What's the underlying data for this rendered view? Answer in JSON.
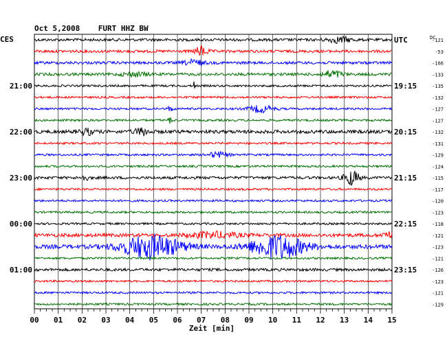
{
  "chart_data": {
    "type": "line",
    "title": "Oct 5,2008    FURT HHZ BW",
    "left_axis_label": "CES",
    "right_axis_label": "UTC",
    "dc_label": "DC",
    "xlabel": "Zeit [min]",
    "x_ticks": [
      "00",
      "01",
      "02",
      "03",
      "04",
      "05",
      "06",
      "07",
      "08",
      "09",
      "10",
      "11",
      "12",
      "13",
      "14",
      "15"
    ],
    "xlim": [
      0,
      15
    ],
    "grid": true,
    "trace_colors": [
      "#000000",
      "#ff0000",
      "#0000ff",
      "#007000"
    ],
    "left_time_labels": [
      {
        "trace": 4,
        "label": "21:00"
      },
      {
        "trace": 8,
        "label": "22:00"
      },
      {
        "trace": 12,
        "label": "23:00"
      },
      {
        "trace": 16,
        "label": "00:00"
      },
      {
        "trace": 20,
        "label": "01:00"
      }
    ],
    "right_time_labels": [
      {
        "trace": 0,
        "label": "UTC"
      },
      {
        "trace": 4,
        "label": "19:15"
      },
      {
        "trace": 8,
        "label": "20:15"
      },
      {
        "trace": 12,
        "label": "21:15"
      },
      {
        "trace": 16,
        "label": "22:15"
      },
      {
        "trace": 20,
        "label": "23:15"
      }
    ],
    "dc_offsets": [
      "-121",
      "-53",
      "-166",
      "-133",
      "-135",
      "-132",
      "-127",
      "-127",
      "-132",
      "-131",
      "-129",
      "-124",
      "-115",
      "-117",
      "-120",
      "-123",
      "-118",
      "-121",
      "-123",
      "-121",
      "-126",
      "-123",
      "-121",
      "-129"
    ],
    "traces": [
      {
        "amplitude": 2,
        "events": [
          {
            "t": 12.8,
            "w": 0.5,
            "a": 4
          }
        ]
      },
      {
        "amplitude": 2,
        "events": [
          {
            "t": 7.0,
            "w": 0.25,
            "a": 7
          }
        ]
      },
      {
        "amplitude": 2,
        "events": [
          {
            "t": 6.7,
            "w": 0.4,
            "a": 4
          }
        ]
      },
      {
        "amplitude": 2,
        "events": [
          {
            "t": 4.2,
            "w": 0.5,
            "a": 3
          },
          {
            "t": 12.5,
            "w": 0.4,
            "a": 5
          }
        ]
      },
      {
        "amplitude": 1.5,
        "events": [
          {
            "t": 6.7,
            "w": 0.05,
            "a": 6
          }
        ]
      },
      {
        "amplitude": 1.5,
        "events": []
      },
      {
        "amplitude": 1.5,
        "events": [
          {
            "t": 5.7,
            "w": 0.1,
            "a": 4
          },
          {
            "t": 9.5,
            "w": 0.5,
            "a": 5
          }
        ]
      },
      {
        "amplitude": 1.5,
        "events": [
          {
            "t": 5.7,
            "w": 0.1,
            "a": 4
          }
        ]
      },
      {
        "amplitude": 2.5,
        "events": [
          {
            "t": 2.2,
            "w": 0.3,
            "a": 4
          },
          {
            "t": 4.5,
            "w": 0.3,
            "a": 5
          }
        ]
      },
      {
        "amplitude": 1.5,
        "events": []
      },
      {
        "amplitude": 1.5,
        "events": [
          {
            "t": 7.7,
            "w": 0.4,
            "a": 4
          }
        ]
      },
      {
        "amplitude": 1.5,
        "events": []
      },
      {
        "amplitude": 2,
        "events": [
          {
            "t": 2.1,
            "w": 0.2,
            "a": 3
          },
          {
            "t": 13.3,
            "w": 0.3,
            "a": 11
          }
        ]
      },
      {
        "amplitude": 1.5,
        "events": []
      },
      {
        "amplitude": 1.5,
        "events": []
      },
      {
        "amplitude": 1.5,
        "events": []
      },
      {
        "amplitude": 1.5,
        "events": []
      },
      {
        "amplitude": 2.5,
        "events": [
          {
            "t": 7.5,
            "w": 1.0,
            "a": 4
          },
          {
            "t": 14.8,
            "w": 0.2,
            "a": 5
          }
        ]
      },
      {
        "amplitude": 3,
        "events": [
          {
            "t": 4.9,
            "w": 1.2,
            "a": 17
          },
          {
            "t": 10.2,
            "w": 1.1,
            "a": 17
          }
        ]
      },
      {
        "amplitude": 1.5,
        "events": []
      },
      {
        "amplitude": 2,
        "events": []
      },
      {
        "amplitude": 1.5,
        "events": []
      },
      {
        "amplitude": 1.5,
        "events": []
      },
      {
        "amplitude": 1.5,
        "events": []
      }
    ]
  }
}
